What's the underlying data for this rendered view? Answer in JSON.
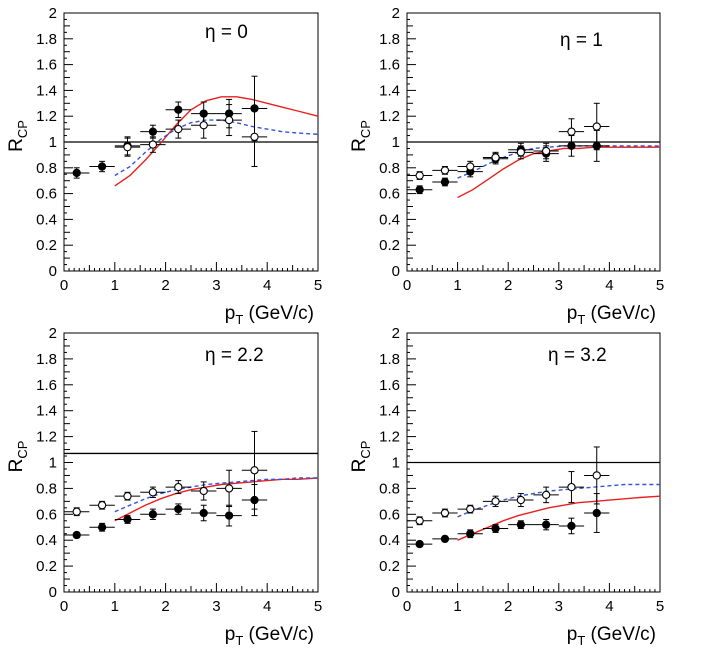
{
  "chart_data": [
    {
      "type": "scatter",
      "annotation": "η = 0",
      "xlabel_main": "p",
      "xlabel_sub": "T",
      "xlabel_unit": " (GeV/c)",
      "ylabel_main": "R",
      "ylabel_sub": "CP",
      "xlim": [
        0,
        5
      ],
      "ylim": [
        0,
        2
      ],
      "xticks": [
        "0",
        "1",
        "2",
        "3",
        "4",
        "5"
      ],
      "yticks": [
        "0",
        "0.2",
        "0.4",
        "0.6",
        "0.8",
        "1",
        "1.2",
        "1.4",
        "1.6",
        "1.8",
        "2"
      ],
      "reference_line": 1.0,
      "series": [
        {
          "marker": "filled",
          "x": [
            0.25,
            0.75,
            1.25,
            1.75,
            2.25,
            2.75,
            3.25,
            3.75
          ],
          "y": [
            0.76,
            0.81,
            0.97,
            1.08,
            1.25,
            1.22,
            1.22,
            1.26
          ],
          "yerr": [
            0.04,
            0.04,
            0.07,
            0.05,
            0.06,
            0.09,
            0.11,
            0.25
          ]
        },
        {
          "marker": "open",
          "x": [
            1.25,
            1.75,
            2.25,
            2.75,
            3.25,
            3.75
          ],
          "y": [
            0.96,
            0.98,
            1.1,
            1.13,
            1.17,
            1.04
          ],
          "yerr": [
            0.07,
            0.06,
            0.07,
            0.1,
            0.12,
            0.23
          ]
        },
        {
          "curve": "solid",
          "color": "#e8201e",
          "x": [
            1.0,
            1.3,
            1.6,
            1.9,
            2.2,
            2.5,
            2.8,
            3.1,
            3.4,
            3.7,
            4.0,
            4.3,
            4.6,
            5.0
          ],
          "y": [
            0.66,
            0.74,
            0.86,
            0.99,
            1.13,
            1.25,
            1.32,
            1.35,
            1.35,
            1.33,
            1.3,
            1.27,
            1.24,
            1.2
          ]
        },
        {
          "curve": "dashed",
          "color": "#3355dd",
          "x": [
            1.0,
            1.3,
            1.6,
            1.9,
            2.2,
            2.5,
            2.8,
            3.1,
            3.4,
            3.7,
            4.0,
            4.3,
            4.6,
            5.0
          ],
          "y": [
            0.74,
            0.81,
            0.92,
            1.02,
            1.1,
            1.15,
            1.17,
            1.17,
            1.15,
            1.12,
            1.1,
            1.08,
            1.07,
            1.06
          ]
        }
      ]
    },
    {
      "type": "scatter",
      "annotation": "η = 1",
      "xlabel_main": "p",
      "xlabel_sub": "T",
      "xlabel_unit": " (GeV/c)",
      "ylabel_main": "R",
      "ylabel_sub": "CP",
      "xlim": [
        0,
        5
      ],
      "ylim": [
        0,
        2
      ],
      "xticks": [
        "0",
        "1",
        "2",
        "3",
        "4",
        "5"
      ],
      "yticks": [
        "0",
        "0.2",
        "0.4",
        "0.6",
        "0.8",
        "1",
        "1.2",
        "1.4",
        "1.6",
        "1.8",
        "2"
      ],
      "reference_line": 1.0,
      "series": [
        {
          "marker": "filled",
          "x": [
            0.25,
            0.75,
            1.25,
            1.75,
            2.25,
            2.75,
            3.25,
            3.75
          ],
          "y": [
            0.63,
            0.69,
            0.77,
            0.87,
            0.94,
            0.91,
            0.97,
            0.97
          ],
          "yerr": [
            0.03,
            0.03,
            0.04,
            0.04,
            0.05,
            0.06,
            0.08,
            0.12
          ]
        },
        {
          "marker": "open",
          "x": [
            0.25,
            0.75,
            1.25,
            1.75,
            2.25,
            2.75,
            3.25,
            3.75
          ],
          "y": [
            0.74,
            0.78,
            0.81,
            0.88,
            0.92,
            0.93,
            1.08,
            1.12
          ],
          "yerr": [
            0.03,
            0.03,
            0.04,
            0.04,
            0.05,
            0.06,
            0.1,
            0.18
          ]
        },
        {
          "curve": "solid",
          "color": "#e8201e",
          "x": [
            1.0,
            1.3,
            1.6,
            1.9,
            2.2,
            2.5,
            2.8,
            3.1,
            3.4,
            3.7,
            4.0,
            4.3,
            4.6,
            5.0
          ],
          "y": [
            0.57,
            0.63,
            0.71,
            0.79,
            0.86,
            0.91,
            0.93,
            0.95,
            0.95,
            0.96,
            0.96,
            0.96,
            0.96,
            0.96
          ]
        },
        {
          "curve": "dashed",
          "color": "#3355dd",
          "x": [
            1.0,
            1.3,
            1.6,
            1.9,
            2.2,
            2.5,
            2.8,
            3.1,
            3.4,
            3.7,
            4.0,
            4.3,
            4.6,
            5.0
          ],
          "y": [
            0.72,
            0.77,
            0.83,
            0.88,
            0.92,
            0.95,
            0.96,
            0.97,
            0.97,
            0.97,
            0.97,
            0.97,
            0.97,
            0.97
          ]
        }
      ]
    },
    {
      "type": "scatter",
      "annotation": "η = 2.2",
      "xlabel_main": "p",
      "xlabel_sub": "T",
      "xlabel_unit": " (GeV/c)",
      "ylabel_main": "R",
      "ylabel_sub": "CP",
      "xlim": [
        0,
        5
      ],
      "ylim": [
        0,
        2
      ],
      "xticks": [
        "0",
        "1",
        "2",
        "3",
        "4",
        "5"
      ],
      "yticks": [
        "0",
        "0.2",
        "0.4",
        "0.6",
        "0.8",
        "1",
        "1.2",
        "1.4",
        "1.6",
        "1.8",
        "2"
      ],
      "reference_line": 1.07,
      "series": [
        {
          "marker": "filled",
          "x": [
            0.25,
            0.75,
            1.25,
            1.75,
            2.25,
            2.75,
            3.25,
            3.75
          ],
          "y": [
            0.44,
            0.5,
            0.56,
            0.6,
            0.64,
            0.61,
            0.59,
            0.71
          ],
          "yerr": [
            0.02,
            0.03,
            0.03,
            0.04,
            0.04,
            0.06,
            0.08,
            0.12
          ]
        },
        {
          "marker": "open",
          "x": [
            0.25,
            0.75,
            1.25,
            1.75,
            2.25,
            2.75,
            3.25,
            3.75
          ],
          "y": [
            0.62,
            0.67,
            0.74,
            0.77,
            0.81,
            0.78,
            0.8,
            0.94
          ],
          "yerr": [
            0.03,
            0.03,
            0.03,
            0.04,
            0.05,
            0.07,
            0.14,
            0.3
          ]
        },
        {
          "curve": "solid",
          "color": "#e8201e",
          "x": [
            1.0,
            1.3,
            1.6,
            1.9,
            2.2,
            2.5,
            2.8,
            3.1,
            3.4,
            3.7,
            4.0,
            4.3,
            4.6,
            5.0
          ],
          "y": [
            0.55,
            0.61,
            0.67,
            0.72,
            0.76,
            0.79,
            0.81,
            0.83,
            0.84,
            0.85,
            0.86,
            0.87,
            0.87,
            0.88
          ]
        },
        {
          "curve": "dashed",
          "color": "#3355dd",
          "x": [
            1.0,
            1.3,
            1.6,
            1.9,
            2.2,
            2.5,
            2.8,
            3.1,
            3.4,
            3.7,
            4.0,
            4.3,
            4.6,
            5.0
          ],
          "y": [
            0.62,
            0.67,
            0.72,
            0.76,
            0.79,
            0.81,
            0.83,
            0.84,
            0.85,
            0.86,
            0.87,
            0.87,
            0.88,
            0.88
          ]
        }
      ]
    },
    {
      "type": "scatter",
      "annotation": "η = 3.2",
      "xlabel_main": "p",
      "xlabel_sub": "T",
      "xlabel_unit": " (GeV/c)",
      "ylabel_main": "R",
      "ylabel_sub": "CP",
      "xlim": [
        0,
        5
      ],
      "ylim": [
        0,
        2
      ],
      "xticks": [
        "0",
        "1",
        "2",
        "3",
        "4",
        "5"
      ],
      "yticks": [
        "0",
        "0.2",
        "0.4",
        "0.6",
        "0.8",
        "1",
        "1.2",
        "1.4",
        "1.6",
        "1.8",
        "2"
      ],
      "reference_line": 1.0,
      "series": [
        {
          "marker": "filled",
          "x": [
            0.25,
            0.75,
            1.25,
            1.75,
            2.25,
            2.75,
            3.25,
            3.75
          ],
          "y": [
            0.37,
            0.41,
            0.45,
            0.49,
            0.52,
            0.52,
            0.51,
            0.61
          ],
          "yerr": [
            0.02,
            0.02,
            0.03,
            0.03,
            0.03,
            0.04,
            0.06,
            0.15
          ]
        },
        {
          "marker": "open",
          "x": [
            0.25,
            0.75,
            1.25,
            1.75,
            2.25,
            2.75,
            3.25,
            3.75
          ],
          "y": [
            0.55,
            0.61,
            0.64,
            0.7,
            0.71,
            0.75,
            0.81,
            0.9
          ],
          "yerr": [
            0.03,
            0.03,
            0.03,
            0.04,
            0.05,
            0.06,
            0.12,
            0.22
          ]
        },
        {
          "curve": "solid",
          "color": "#e8201e",
          "x": [
            1.0,
            1.3,
            1.6,
            1.9,
            2.2,
            2.5,
            2.8,
            3.1,
            3.4,
            3.7,
            4.0,
            4.3,
            4.6,
            5.0
          ],
          "y": [
            0.4,
            0.45,
            0.5,
            0.55,
            0.59,
            0.62,
            0.65,
            0.67,
            0.69,
            0.7,
            0.71,
            0.72,
            0.73,
            0.74
          ]
        },
        {
          "curve": "dashed",
          "color": "#3355dd",
          "x": [
            1.0,
            1.3,
            1.6,
            1.9,
            2.2,
            2.5,
            2.8,
            3.1,
            3.4,
            3.7,
            4.0,
            4.3,
            4.6,
            5.0
          ],
          "y": [
            0.58,
            0.63,
            0.67,
            0.71,
            0.74,
            0.76,
            0.78,
            0.79,
            0.8,
            0.81,
            0.82,
            0.83,
            0.83,
            0.83
          ]
        }
      ]
    }
  ]
}
